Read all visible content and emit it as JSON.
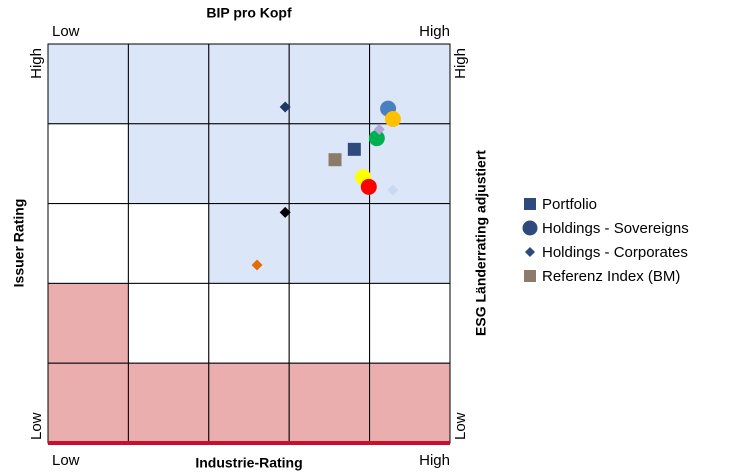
{
  "chart_data": {
    "type": "scatter",
    "top_label": "BIP pro Kopf",
    "bottom_label": "Industrie-Rating",
    "left_label": "Issuer Rating",
    "right_label": "ESG Länderrating adjustiert",
    "low_label": "Low",
    "high_label": "High",
    "xlim": [
      0,
      5
    ],
    "ylim": [
      0,
      5
    ],
    "cells": [
      [
        "#dbe6f8",
        "#dbe6f8",
        "#dbe6f8",
        "#dbe6f8",
        "#dbe6f8"
      ],
      [
        "#ffffff",
        "#dbe6f8",
        "#dbe6f8",
        "#dbe6f8",
        "#dbe6f8"
      ],
      [
        "#ffffff",
        "#ffffff",
        "#dbe6f8",
        "#dbe6f8",
        "#dbe6f8"
      ],
      [
        "#ebaeae",
        "#ffffff",
        "#ffffff",
        "#ffffff",
        "#ffffff"
      ],
      [
        "#ebaeae",
        "#ebaeae",
        "#ebaeae",
        "#ebaeae",
        "#ebaeae"
      ]
    ],
    "baseline_color": "#c8102e",
    "legend": "right",
    "series": [
      {
        "name": "Portfolio",
        "marker": "square",
        "color": "#2e4a7d",
        "x": [
          3.81
        ],
        "values": [
          3.68
        ],
        "colors": [
          "#2e4a7d"
        ]
      },
      {
        "name": "Holdings - Sovereigns",
        "marker": "circle",
        "color": "#2e4a7d",
        "x": [
          4.23,
          4.29,
          4.09,
          3.92,
          3.99
        ],
        "values": [
          4.19,
          4.06,
          3.82,
          3.33,
          3.21
        ],
        "colors": [
          "#4a7fc1",
          "#ffc000",
          "#00b050",
          "#ffff00",
          "#ff0000"
        ]
      },
      {
        "name": "Holdings - Corporates",
        "marker": "diamond",
        "color": "#2e4a7d",
        "x": [
          2.95,
          4.12,
          4.29,
          2.95,
          2.6
        ],
        "values": [
          4.21,
          3.93,
          3.17,
          2.89,
          2.23
        ],
        "colors": [
          "#1f3864",
          "#b4a7d6",
          "#c9d9f0",
          "#000000",
          "#e36c0a"
        ]
      },
      {
        "name": "Referenz Index (BM)",
        "marker": "square",
        "color": "#8c7b6b",
        "x": [
          3.57
        ],
        "values": [
          3.55
        ],
        "colors": [
          "#8c7b6b"
        ]
      }
    ]
  }
}
